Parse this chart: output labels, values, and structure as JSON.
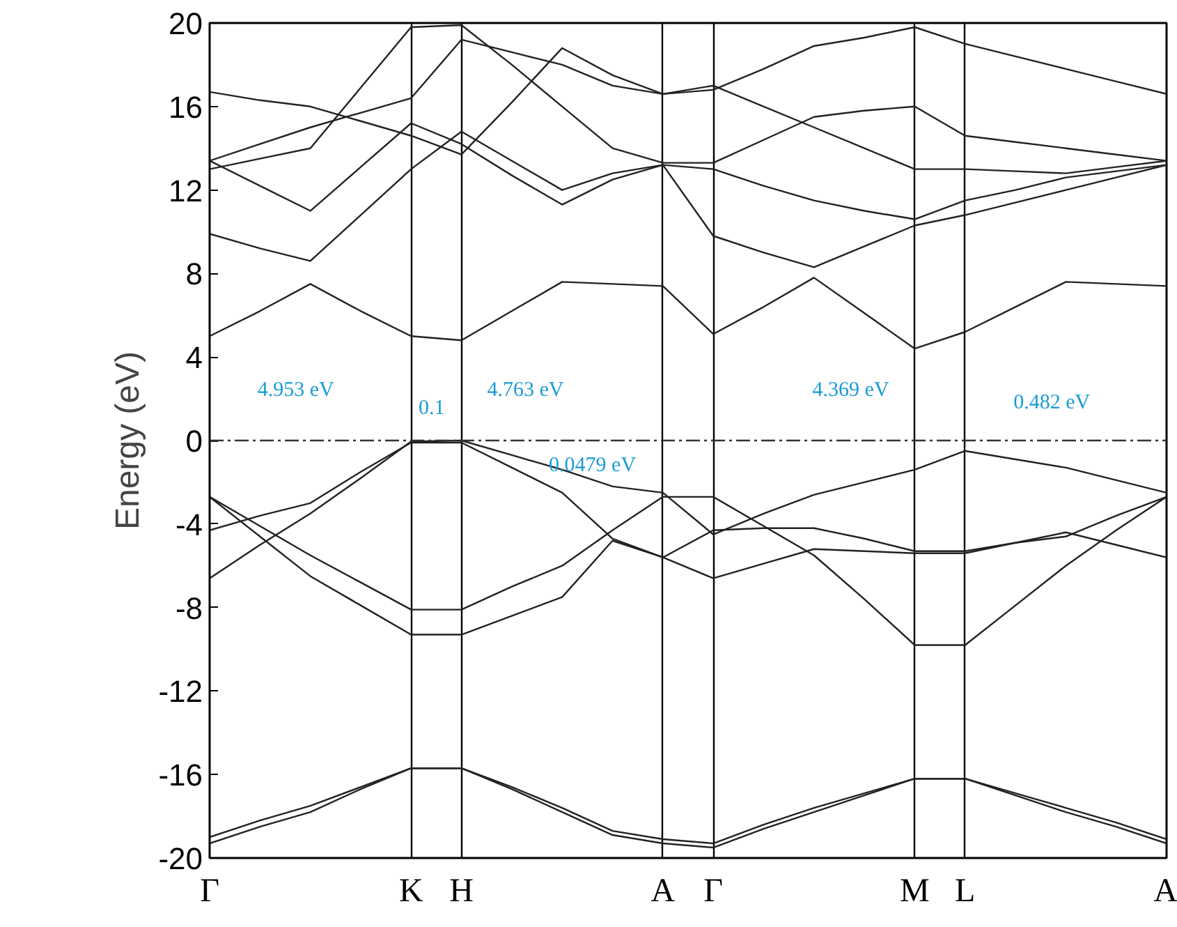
{
  "chart_data": {
    "type": "line",
    "ylabel": "Energy (eV)",
    "categories": [
      "Γ",
      null,
      null,
      null,
      "K",
      "H",
      null,
      null,
      null,
      "A",
      "Γ",
      null,
      null,
      null,
      "M",
      "L",
      null,
      null,
      null,
      "A"
    ],
    "ylim": [
      -20,
      20
    ],
    "yticks": [
      -20,
      -16,
      -12,
      -8,
      -4,
      0,
      4,
      8,
      12,
      16,
      20
    ],
    "grid": "x",
    "marker": "none",
    "line_style": "solid",
    "series": [
      {
        "color": "#222222",
        "values": [
          -19.3,
          -18.5,
          -17.8,
          -16.7,
          -15.7,
          -15.7,
          -16.7,
          -17.8,
          -18.9,
          -19.3,
          -19.5,
          -18.6,
          -17.8,
          -17.0,
          -16.2,
          -16.2,
          -17.0,
          -17.8,
          -18.5,
          -19.3
        ]
      },
      {
        "color": "#222222",
        "values": [
          -19.0,
          -18.2,
          -17.5,
          -16.6,
          -15.7,
          -15.7,
          -16.6,
          -17.6,
          -18.7,
          -19.1,
          -19.3,
          -18.4,
          -17.6,
          -16.9,
          -16.2,
          -16.2,
          -16.9,
          -17.6,
          -18.3,
          -19.1
        ]
      },
      {
        "color": "#222222",
        "values": [
          -2.7,
          -4.1,
          -5.5,
          -6.8,
          -8.1,
          -8.1,
          -7.0,
          -6.0,
          -4.3,
          -2.7,
          -2.7,
          -4.1,
          -5.5,
          -7.6,
          -9.8,
          -9.8,
          -7.9,
          -6.0,
          -4.3,
          -2.7
        ]
      },
      {
        "color": "#222222",
        "values": [
          -2.7,
          -4.6,
          -6.5,
          -7.9,
          -9.3,
          -9.3,
          -8.4,
          -7.5,
          -4.8,
          -5.6,
          -4.3,
          -4.2,
          -4.2,
          -4.7,
          -5.3,
          -5.3,
          -4.9,
          -4.6,
          -3.6,
          -2.7
        ]
      },
      {
        "color": "#222222",
        "values": [
          -4.3,
          -3.6,
          -3.0,
          -1.5,
          -0.1,
          -0.1,
          -1.3,
          -2.5,
          -4.7,
          -5.6,
          -6.6,
          -5.9,
          -5.2,
          -5.3,
          -5.4,
          -5.4,
          -4.9,
          -4.4,
          -5.0,
          -5.6
        ]
      },
      {
        "color": "#222222",
        "values": [
          -6.6,
          -5.0,
          -3.5,
          -1.8,
          -0.05,
          0,
          -0.7,
          -1.4,
          -2.2,
          -2.5,
          -4.5,
          -3.5,
          -2.6,
          -2.0,
          -1.4,
          -0.5,
          -0.9,
          -1.3,
          -1.9,
          -2.5
        ]
      },
      {
        "color": "#222222",
        "values": [
          5.0,
          6.2,
          7.5,
          6.2,
          5.0,
          4.8,
          6.2,
          7.6,
          7.5,
          7.4,
          5.1,
          6.4,
          7.8,
          6.1,
          4.4,
          5.2,
          6.4,
          7.6,
          7.5,
          7.4
        ]
      },
      {
        "color": "#222222",
        "values": [
          9.9,
          9.2,
          8.6,
          10.8,
          13.0,
          14.8,
          13.4,
          12.0,
          12.8,
          13.2,
          9.8,
          9.0,
          8.3,
          9.3,
          10.3,
          10.8,
          11.4,
          12.0,
          12.6,
          13.2
        ]
      },
      {
        "color": "#222222",
        "values": [
          13.4,
          12.2,
          11.0,
          13.1,
          15.2,
          14.2,
          12.7,
          11.3,
          12.5,
          13.2,
          13.0,
          12.2,
          11.5,
          11.0,
          10.6,
          11.5,
          12.0,
          12.6,
          12.9,
          13.2
        ]
      },
      {
        "color": "#222222",
        "values": [
          13.4,
          14.2,
          15.0,
          15.7,
          16.4,
          19.2,
          18.6,
          18.0,
          17.0,
          16.6,
          17.0,
          16.0,
          15.0,
          14.0,
          13.0,
          13.0,
          12.9,
          12.8,
          13.1,
          13.4
        ]
      },
      {
        "color": "#222222",
        "values": [
          16.7,
          16.3,
          16.0,
          15.3,
          14.6,
          13.7,
          16.2,
          18.8,
          17.5,
          16.6,
          16.8,
          17.8,
          18.9,
          19.3,
          19.8,
          19.0,
          18.4,
          17.8,
          17.2,
          16.6
        ]
      },
      {
        "color": "#222222",
        "values": [
          13.0,
          13.5,
          14.0,
          16.9,
          19.8,
          19.9,
          18.0,
          16.0,
          14.0,
          13.3,
          13.3,
          14.4,
          15.5,
          15.8,
          16.0,
          14.6,
          14.3,
          14.0,
          13.7,
          13.4
        ]
      }
    ],
    "ref_lines": [
      {
        "axis": "y",
        "value": 0,
        "color": "#333333",
        "line_style": "dashed"
      }
    ],
    "annotations": [
      "4.953 eV",
      "0.1",
      "4.763 eV",
      "0.0479 eV",
      "4.369 eV",
      "0.482 eV"
    ]
  }
}
